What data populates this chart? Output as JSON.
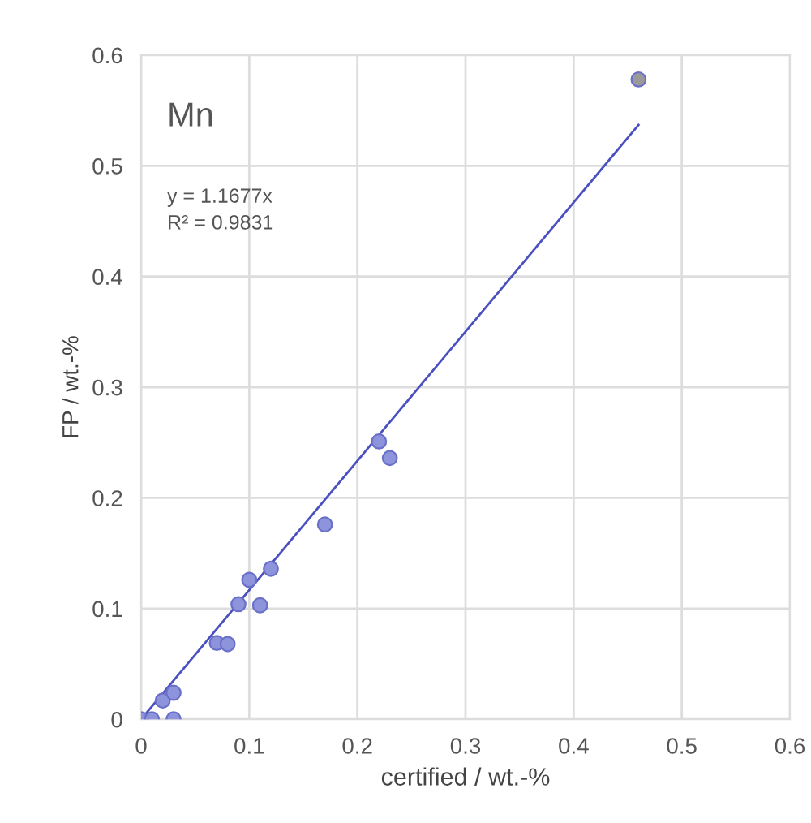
{
  "chart_data": {
    "type": "scatter",
    "xlabel": "certified / wt.-%",
    "ylabel": "FP / wt.-%",
    "annotations": [
      "Mn",
      "y = 1.1677x",
      "R² = 0.9831"
    ],
    "series": [
      {
        "color": "#8e94dc",
        "marker": "circle",
        "x": [
          0,
          0.01,
          0.03,
          0.02,
          0.03,
          0.07,
          0.08,
          0.09,
          0.1,
          0.11,
          0.12,
          0.17,
          0.22,
          0.23,
          0.46
        ],
        "values": [
          0,
          0,
          0,
          0.017,
          0.024,
          0.069,
          0.068,
          0.104,
          0.126,
          0.103,
          0.136,
          0.176,
          0.251,
          0.236,
          0.578
        ],
        "colors": [
          "#8e94dc",
          "#8e94dc",
          "#8e94dc",
          "#8e94dc",
          "#8e94dc",
          "#8e94dc",
          "#8e94dc",
          "#8e94dc",
          "#8e94dc",
          "#8e94dc",
          "#8e94dc",
          "#8e94dc",
          "#8e94dc",
          "#8e94dc",
          "#9a9a9a"
        ]
      },
      {
        "type": "line",
        "marker": "none",
        "color": "#4a50c0",
        "x": [
          0,
          0.46
        ],
        "values": [
          0,
          0.537
        ]
      }
    ],
    "xlim": [
      0,
      0.6
    ],
    "ylim": [
      0,
      0.6
    ],
    "xticks": [
      {
        "value": 0,
        "label": "0"
      },
      0.1,
      0.2,
      0.3,
      0.4,
      0.5,
      0.6
    ],
    "yticks": [
      {
        "value": 0,
        "label": "0"
      },
      0.1,
      0.2,
      0.3,
      0.4,
      0.5,
      0.6
    ],
    "grid": true
  }
}
